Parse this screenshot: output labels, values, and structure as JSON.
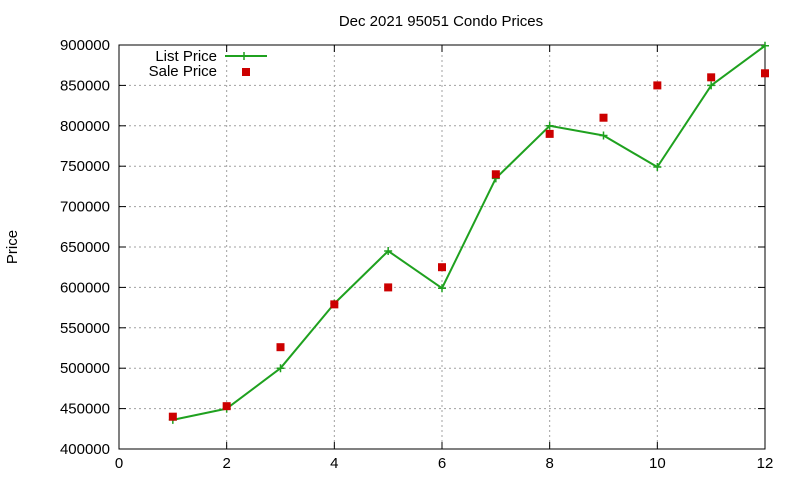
{
  "chart_data": {
    "type": "line",
    "title": "Dec 2021 95051 Condo Prices",
    "xlabel": "",
    "ylabel": "Price",
    "xlim": [
      0,
      12
    ],
    "ylim": [
      400000,
      900000
    ],
    "x_ticks": [
      0,
      2,
      4,
      6,
      8,
      10,
      12
    ],
    "y_ticks": [
      400000,
      450000,
      500000,
      550000,
      600000,
      650000,
      700000,
      750000,
      800000,
      850000,
      900000
    ],
    "grid": true,
    "legend_position": "top-left",
    "series": [
      {
        "name": "List Price",
        "style": "line with plus markers",
        "color": "#1fa11f",
        "x": [
          1,
          2,
          3,
          4,
          5,
          6,
          7,
          8,
          9,
          10,
          11,
          12
        ],
        "y": [
          436000,
          450000,
          500000,
          580000,
          645000,
          599000,
          735000,
          800000,
          788000,
          749000,
          850000,
          899000
        ]
      },
      {
        "name": "Sale Price",
        "style": "square markers",
        "color": "#cc0000",
        "x": [
          1,
          2,
          3,
          4,
          5,
          6,
          7,
          8,
          9,
          10,
          11,
          12
        ],
        "y": [
          440000,
          453000,
          526000,
          579000,
          600000,
          625000,
          740000,
          790000,
          810000,
          850000,
          860000,
          865000
        ]
      }
    ]
  }
}
